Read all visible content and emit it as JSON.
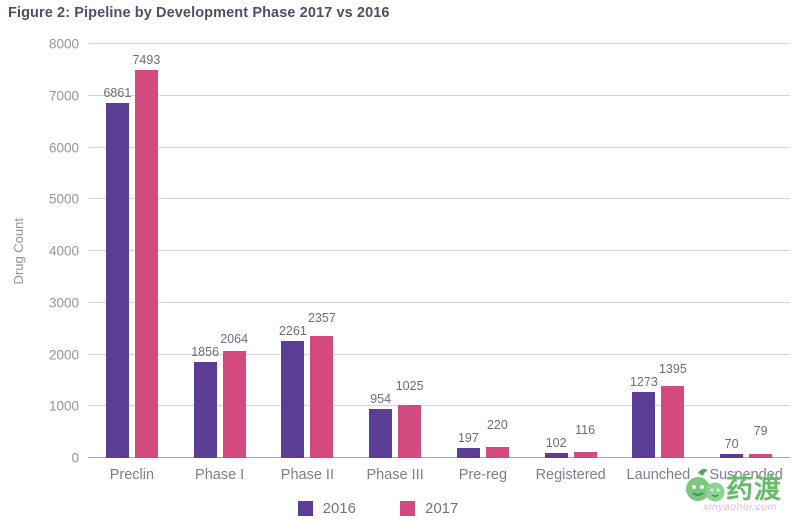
{
  "title": "Figure 2: Pipeline by Development Phase 2017 vs 2016",
  "chart_data": {
    "type": "bar",
    "title": "Figure 2: Pipeline by Development Phase 2017 vs 2016",
    "categories": [
      "Preclin",
      "Phase I",
      "Phase II",
      "Phase III",
      "Pre-reg",
      "Registered",
      "Launched",
      "Suspended"
    ],
    "series": [
      {
        "name": "2016",
        "color": "#5c3d96",
        "values": [
          6861,
          1856,
          2261,
          954,
          197,
          102,
          1273,
          70
        ]
      },
      {
        "name": "2017",
        "color": "#d34a7e",
        "values": [
          7493,
          2064,
          2357,
          1025,
          220,
          116,
          1395,
          79
        ]
      }
    ],
    "xlabel": "",
    "ylabel": "Drug Count",
    "ylim": [
      0,
      8000
    ],
    "ytick_step": 1000,
    "grid": true,
    "legend_position": "bottom"
  },
  "watermark": {
    "text": "药渡",
    "subtext": "xinyaohui.com",
    "color": "#64bb68"
  }
}
